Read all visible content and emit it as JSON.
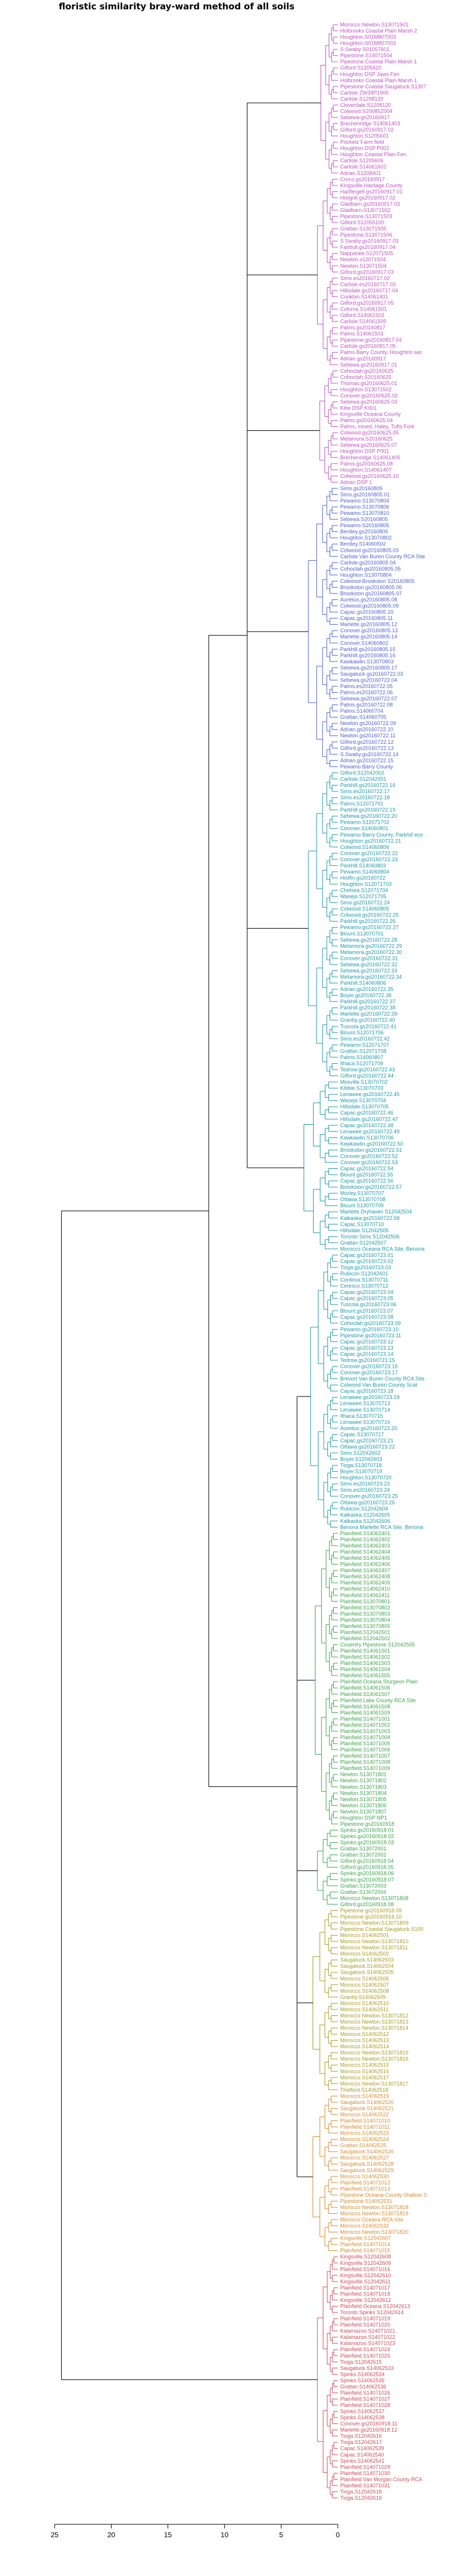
{
  "chart_data": {
    "type": "dendrogram",
    "title": "floristic similarity bray-ward method of all soils",
    "orientation": "left",
    "xlim": [
      25,
      0
    ],
    "xticks": [
      25,
      20,
      15,
      10,
      5,
      0
    ],
    "tree": {
      "h": 24.4,
      "children": [
        {
          "h": 11.4,
          "children": [
            {
              "h": 8.0,
              "children": [
                {
                  "h": 1.5,
                  "group": "magenta",
                  "leaves": [
                    "Morocco Newton.S13071501",
                    "Holbrooks Coastal Plain Marsh 2",
                    "Houghton.S01M807003",
                    "Houghton.S01M807003",
                    "S.Swaby S01057601",
                    "Pipestone.S13071504",
                    "Pipestone Coastal Plain Marsh 1",
                    "Gilford S1205420",
                    "Houghton DSP Jaws Fen",
                    "Holbrooks Coastal Plain Marsh 1",
                    "Pipestone Coastal Saugatuck.S1307",
                    "Carlisle ZW39P1900",
                    "Carlisle.S1208120",
                    "Cloverdale.S1208120",
                    "Colwood.S20085Z004",
                    "Sebewa.gs20160917",
                    "Brechenridge S14061403",
                    "Gilford.gs20160917.02",
                    "Houghton.S1205601",
                    "Pocketz Farm field",
                    "Houghton DSP P002",
                    "Houghton Coastal Plain Fen",
                    "Carlisle.S1205606",
                    "Carlisle.S14061602",
                    "Adrian.S1208401"
                  ]
                },
                {
                  "h": 1.8,
                  "group": "magenta",
                  "leaves": [
                    "Cronz.gs20160917",
                    "Kingsville Hardage County",
                    "Hartfergell.gs20160917.01",
                    "Histgrill gs20160917.02",
                    "Gladbarn.gs20160917.03",
                    "Gladbarn.S13071502",
                    "Pipestone.S13071503",
                    "Gilford.S12055100",
                    "Grattan.S13071505",
                    "Pipestone.S13071506",
                    "S.Swaby.gs20160917.03",
                    "Fairbull.gs20160917.04",
                    "Nappanee.S12071505",
                    "Newton.s12071504",
                    "Newton.S13071504",
                    "Gilford.gs20160917.03",
                    "Sims.es20160717.02",
                    "Carlisle.es20160717.03",
                    "Hillsdale.gs20160717.04",
                    "Cookbin.S14061401",
                    "Gilford.gs20160917.05",
                    "Coloma S14061501",
                    "Gilford.S14061503",
                    "Carlisle.S14061505",
                    "Palms.gs20160817",
                    "Palms.S14061503",
                    "Pipestone.gs20160817.04",
                    "Carlisle.gs20160817.05",
                    "Palms Barry County, Houghton sec",
                    "Adrian.gs20160917",
                    "Sebewa.gs20160917.01"
                  ]
                },
                {
                  "h": 1.6,
                  "group": "magenta",
                  "leaves": [
                    "Cohoctah.gs20160625",
                    "Cohoctah.S20160625",
                    "Thomas.gs20160625.01",
                    "Houghton.S13071502",
                    "Conover.gs20160625.02",
                    "Sebewa.gs20160625.03",
                    "Kibe DSP K001",
                    "Kingsville Oceana County",
                    "Palms.gs20160625.04",
                    "Palms, mixed, Haley, Tufts Fork",
                    "Colwood.gs20160625.05",
                    "Metamora.S20160625",
                    "Sebewa.gs20160625.07",
                    "Houghton DSP P001",
                    "Brechenridge.S14061405",
                    "Palms.gs20160625.08",
                    "Houghton.S14061407",
                    "Colwood.gs20160625.10",
                    "Adrian DSP 1"
                  ]
                },
                {
                  "h": 2.6,
                  "group": "blue",
                  "leaves": [
                    "Sims.gs20160805",
                    "Sims.gs20160805.01",
                    "Pewamo.S13070804",
                    "Pewamo.S13070806",
                    "Pewamo.S13070810",
                    "Sebewa.S20160805",
                    "Pewamo.S20160805",
                    "Bentley.gs20160805",
                    "Houghton.S13070802",
                    "Bentley.S14060502",
                    "Colwood.gs20160805.03",
                    "Carlisle Van Buren County RCA Site",
                    "Carlisle.gs20160805.04",
                    "Cohoctah.gs20160805.05",
                    "Houghton.S13070804",
                    "Colwood Brookston S20160805",
                    "Brookston.gs20160805.06",
                    "Brookston.gs20160805.07",
                    "Aurelius.gs20160805.08",
                    "Colwood.gs20160805.09",
                    "Capac.gs20160805.10",
                    "Capac.gs20160805.11",
                    "Marlette.gs20160805.12",
                    "Conover.gs20160805.13",
                    "Marlette.gs20160805.14",
                    "Conover.S14060802",
                    "Parkhill.gs20160805.15",
                    "Parkhill.gs20160805.16",
                    "Kawkawlin.S13070803",
                    "Sebewa.gs20160805.17",
                    "Saugatuck gs20160722.03",
                    "Sebewa.gs20160722.04",
                    "Palms.es20160722.05",
                    "Palms.es20160722.06",
                    "Sebewa.gs20160722.07",
                    "Palms.gs20160722.08",
                    "Palms.S14060704",
                    "Grattan.S14060705",
                    "Newton.gs20160722.09",
                    "Adrian.gs20160722.10",
                    "Newton.gs20160722.11",
                    "Gilford.gs20160722.12",
                    "Gilford.gs20160722.13",
                    "S.Swaby.gs20160722.14",
                    "Adrian.gs20160722.15",
                    "Pewamo Barry County"
                  ]
                },
                {
                  "h": 2.6,
                  "group": "teal",
                  "leaves": [
                    "Gilford.S12042002",
                    "Carlisle.S12042001",
                    "Parkhill.gs20160722.16",
                    "Sims.es20160722.17",
                    "Sims.es20160722.18",
                    "Palms.S12071701",
                    "Parkhill.gs20160722.19",
                    "Sebewa.gs20160722.20",
                    "Pewamo.S12071702",
                    "Conover.S14060801",
                    "Pewamo Barry County, Parkhill eco",
                    "Houghton.gs20160722.21",
                    "Colwood.S14060806",
                    "Conover.gs20160722.22",
                    "Conover.gs20160722.23",
                    "Parkhill.S14060803",
                    "Pewamo.S14060804",
                    "Histfin.gs20160722",
                    "Houghton.S12071703",
                    "Chelsea.S12071704",
                    "Wasepi.S12071705",
                    "Sims.gs20160722.24",
                    "Colwood.S14060805",
                    "Colwood.gs20160722.25",
                    "Parkhill.gs20160722.26",
                    "Pewamo.gs20160722.27",
                    "Blount.S13070701",
                    "Sebewa.gs20160722.28",
                    "Metamora.gs20160722.29",
                    "Metamora.gs20160722.30",
                    "Conover.gs20160722.31",
                    "Sebewa.gs20160722.32",
                    "Sebewa.gs20160722.33",
                    "Metamora.gs20160722.34",
                    "Parkhill.S14060806",
                    "Adrian.gs20160722.35",
                    "Boyer.gs20160722.36",
                    "Parkhill.gs20160722.37",
                    "Parkhill.gs20160722.38",
                    "Marlette.gs20160722.39",
                    "Granby.gs20160722.40",
                    "Tuscola.gs20160722.41",
                    "Blount.S12071706",
                    "Sims.es20160722.42",
                    "Pewamo.S12071707",
                    "Grattan.S12071708",
                    "Palms.S14060807",
                    "Ithaca.S12071709",
                    "Tedrow.gs20160722.43",
                    "Gilford.gs20160722.44"
                  ]
                },
                {
                  "h": 3.0,
                  "group": "teal",
                  "leaves": [
                    "Moxville.S13070702",
                    "Kibbie.S13070703",
                    "Lenawee.gs20160722.45",
                    "Wasepi.S13070704",
                    "Hillsdale.S13070705",
                    "Capac.gs20160722.46",
                    "Hillsdale.gs20160722.47",
                    "Capac.gs20160722.48",
                    "Lenawee.gs20160722.49",
                    "Kawkawlin.S13070706",
                    "Kawkawlin.gs20160722.50",
                    "Brookston.gs20160722.51",
                    "Conover.gs20160722.52",
                    "Conover.gs20160722.53",
                    "Capac.gs20160722.54",
                    "Blount.gs20160722.55",
                    "Capac.gs20160722.56",
                    "Brookston.gs20160722.57",
                    "Morley.S13070707",
                    "Ottawa.S13070708",
                    "Blount.S13070709",
                    "Marlette Dryhaven S12042504",
                    "Kalkaska.gs20160722.58",
                    "Capac.S13070710",
                    "Hillsdale.S12042505",
                    "Toronto Sims S12042506",
                    "Grattan.S12042507",
                    "Morocco Oceana RCA Site, Benona"
                  ]
                }
              ]
            },
            {
              "h": 3.6,
              "children": [
                {
                  "h": 2.4,
                  "group": "teal",
                  "leaves": [
                    "Capac.gs20160723.01",
                    "Capac.gs20160723.02",
                    "Tioga.gs20160723.03",
                    "Rubicon.S12042601",
                    "Cordova.S13070711",
                    "Ceresco.S13070712",
                    "Capac.gs20160723.04",
                    "Capac.gs20160723.05",
                    "Tuscola.gs20160723.06",
                    "Blount.gs20160723.07",
                    "Capac.gs20160723.08",
                    "Cohoctah.gs20160723.09",
                    "Pewamo.gs20160723.10",
                    "Pipestone.gs20160723.11",
                    "Capac.gs20160723.12",
                    "Capac.gs20160723.13",
                    "Capac.gs20160723.14",
                    "Tedrow.gs20160723.15",
                    "Conover.gs20160723.16",
                    "Conover.gs20160723.17",
                    "Brevort Van Buren County RCA Site",
                    "Colwood Van Buren County Scat",
                    "Capac.gs20160723.18",
                    "Lenawee.gs20160723.19",
                    "Lenawee.S13070713",
                    "Lenawee.S13070714",
                    "Ithaca.S13070715",
                    "Lenawee.S13070716",
                    "Aurelius.gs20160723.20",
                    "Capac.S13070717",
                    "Capac.gs20160723.21",
                    "Ottawa.gs20160723.22",
                    "Sims.S12042602",
                    "Boyer.S12042603",
                    "Tioga.S13070718",
                    "Boyer.S13070719",
                    "Houghton.S13070720",
                    "Sims.es20160723.23",
                    "Sims.es20160723.24",
                    "Conover.gs20160723.25",
                    "Ottawa.gs20160723.26",
                    "Rubicon.S12042604",
                    "Kalkaska.S12042605",
                    "Kalkaska.S12042606",
                    "Benona Marlette RCA Site, Benona"
                  ]
                },
                {
                  "h": 2.0,
                  "group": "green",
                  "leaves": [
                    "Plainfield.S14062401",
                    "Plainfield.S14062402",
                    "Plainfield.S14062403",
                    "Plainfield.S14062404",
                    "Plainfield.S14062405",
                    "Plainfield.S14062406",
                    "Plainfield.S14062407",
                    "Plainfield.S14062408",
                    "Plainfield.S14062409",
                    "Plainfield.S14062410",
                    "Plainfield.S14062411",
                    "Plainfield.S13070801",
                    "Plainfield.S13070802",
                    "Plainfield.S13070803",
                    "Plainfield.S13070804",
                    "Plainfield.S13070805",
                    "Plainfield.S12042501",
                    "Plainfield.S12042502",
                    "Coventry Pipestone S12042505",
                    "Plainfield.S14061501",
                    "Plainfield.S14061502",
                    "Plainfield.S14061503",
                    "Plainfield.S14061504",
                    "Plainfield.S14061505",
                    "Plainfield Oceana Sturgeon Plain",
                    "Plainfield.S14061506",
                    "Plainfield.S14061507",
                    "Plainfield Lake County RCA Site",
                    "Plainfield.S14061508",
                    "Plainfield.S14061509",
                    "Plainfield.S14071001",
                    "Plainfield.S14071002",
                    "Plainfield.S14071003",
                    "Plainfield.S14071004",
                    "Plainfield.S14071005",
                    "Plainfield.S14071006",
                    "Plainfield.S14071007",
                    "Plainfield.S14071008",
                    "Plainfield.S14071009",
                    "Newton.S13071801",
                    "Newton.S13071802",
                    "Newton.S13071803",
                    "Newton.S13071804",
                    "Newton.S13071805",
                    "Newton.S13071806",
                    "Newton.S13071807",
                    "Houghton DSP NP1",
                    "Pipestone.gs20160918"
                  ]
                },
                {
                  "h": 1.8,
                  "group": "green",
                  "leaves": [
                    "Spinks.gs20160918.01",
                    "Spinks.gs20160918.02",
                    "Spinks.gs20160918.03",
                    "Grattan.S13072001",
                    "Grattan.S13072002",
                    "Gilford.gs20160918.04",
                    "Gilford.gs20160918.05",
                    "Spinks.gs20160918.06",
                    "Spinks.gs20160918.07",
                    "Grattan.S13072003",
                    "Grattan.S13072004",
                    "Morocco Newton.S13071808",
                    "Gilford.gs20160918.08"
                  ]
                },
                {
                  "h": 2.2,
                  "group": "olive",
                  "leaves": [
                    "Pipestone.gs20160918.09",
                    "Pipestone.gs20160918.10",
                    "Morocco Newton.S13071809",
                    "Pipestone Coastal Saugatuck.S100",
                    "Morocco.S14062501",
                    "Morocco Newton.S13071810",
                    "Morocco Newton.S13071811",
                    "Morocco.S14062502",
                    "Saugatuck.S14062503",
                    "Saugatuck.S14062504",
                    "Saugatuck.S14062505",
                    "Morocco.S14062506",
                    "Morocco.S14062507",
                    "Morocco.S14062508",
                    "Granby.S14062509",
                    "Morocco.S14062510",
                    "Morocco.S14062511",
                    "Morocco Newton.S13071812",
                    "Morocco Newton.S13071813",
                    "Morocco Newton.S13071814",
                    "Morocco.S14062512",
                    "Morocco.S14062513",
                    "Morocco.S14062514",
                    "Morocco Newton.S13071815",
                    "Morocco Newton.S13071816",
                    "Morocco.S14062515",
                    "Morocco.S14062516",
                    "Morocco.S14062517",
                    "Morocco Newton.S13071817",
                    "Thetford.S14062518"
                  ]
                },
                {
                  "h": 2.2,
                  "group": "orange",
                  "leaves": [
                    "Morocco.S14062519",
                    "Saugatuck.S14062520",
                    "Saugatuck.S14062521",
                    "Morocco.S14062522",
                    "Plainfield.S14071010",
                    "Plainfield.S14071011",
                    "Morocco.S14062523",
                    "Morocco.S14062524",
                    "Grattan.S14062525",
                    "Saugatuck.S14062526",
                    "Morocco.S14062527",
                    "Saugatuck.S14062528",
                    "Saugatuck.S14062529",
                    "Morocco.S14062530",
                    "Plainfield.S14071012",
                    "Plainfield.S14071013",
                    "Pipestone Oceana County Shallow S",
                    "Pipestone.S14062531",
                    "Morocco Newton.S13071818",
                    "Morocco Newton.S13071819",
                    "Morocco Oceana RCA Site",
                    "Morocco.S14062532",
                    "Morocco Newton.S13071820",
                    "Kingsville.S12042607",
                    "Plainfield.S14071014",
                    "Plainfield.S14071015"
                  ]
                }
              ]
            }
          ]
        },
        {
          "h": 1.8,
          "group": "red",
          "leaves": [
            "Kingsville.S12042608",
            "Kingsville.S12042609",
            "Plainfield.S14071016",
            "Kingsville.S12042610",
            "Kingsville.S12042611",
            "Plainfield.S14071017",
            "Plainfield.S14071018",
            "Kingsville.S12042612",
            "Plainfield Oceana S12042613",
            "Toronto Spinks S12042614",
            "Plainfield.S14071019",
            "Plainfield.S14071020",
            "Kalamazoo.S14071021",
            "Kalamazoo.S14071022",
            "Kalamazoo.S14071023",
            "Plainfield.S14071024",
            "Plainfield.S14071025",
            "Tioga.S12042615",
            "Saugatuck.S14062533",
            "Spinks.S14062534",
            "Spinks.S14062535",
            "Grattan.S14062536",
            "Plainfield.S14071026",
            "Plainfield.S14071027",
            "Plainfield.S14071028",
            "Spinks.S14062537",
            "Spinks.S14062538",
            "Conover.gs20160918.11",
            "Marlette.gs20160918.12",
            "Tioga.S12042616",
            "Tioga.S12042617",
            "Capac.S14062539",
            "Capac.S14062540",
            "Spinks.S14062541",
            "Plainfield.S14071029",
            "Plainfield.S14071030",
            "Plainfield Van Morgan County RCA",
            "Plainfield.S14071031",
            "Tioga.S12042618",
            "Tioga.S12042619"
          ]
        }
      ]
    }
  }
}
